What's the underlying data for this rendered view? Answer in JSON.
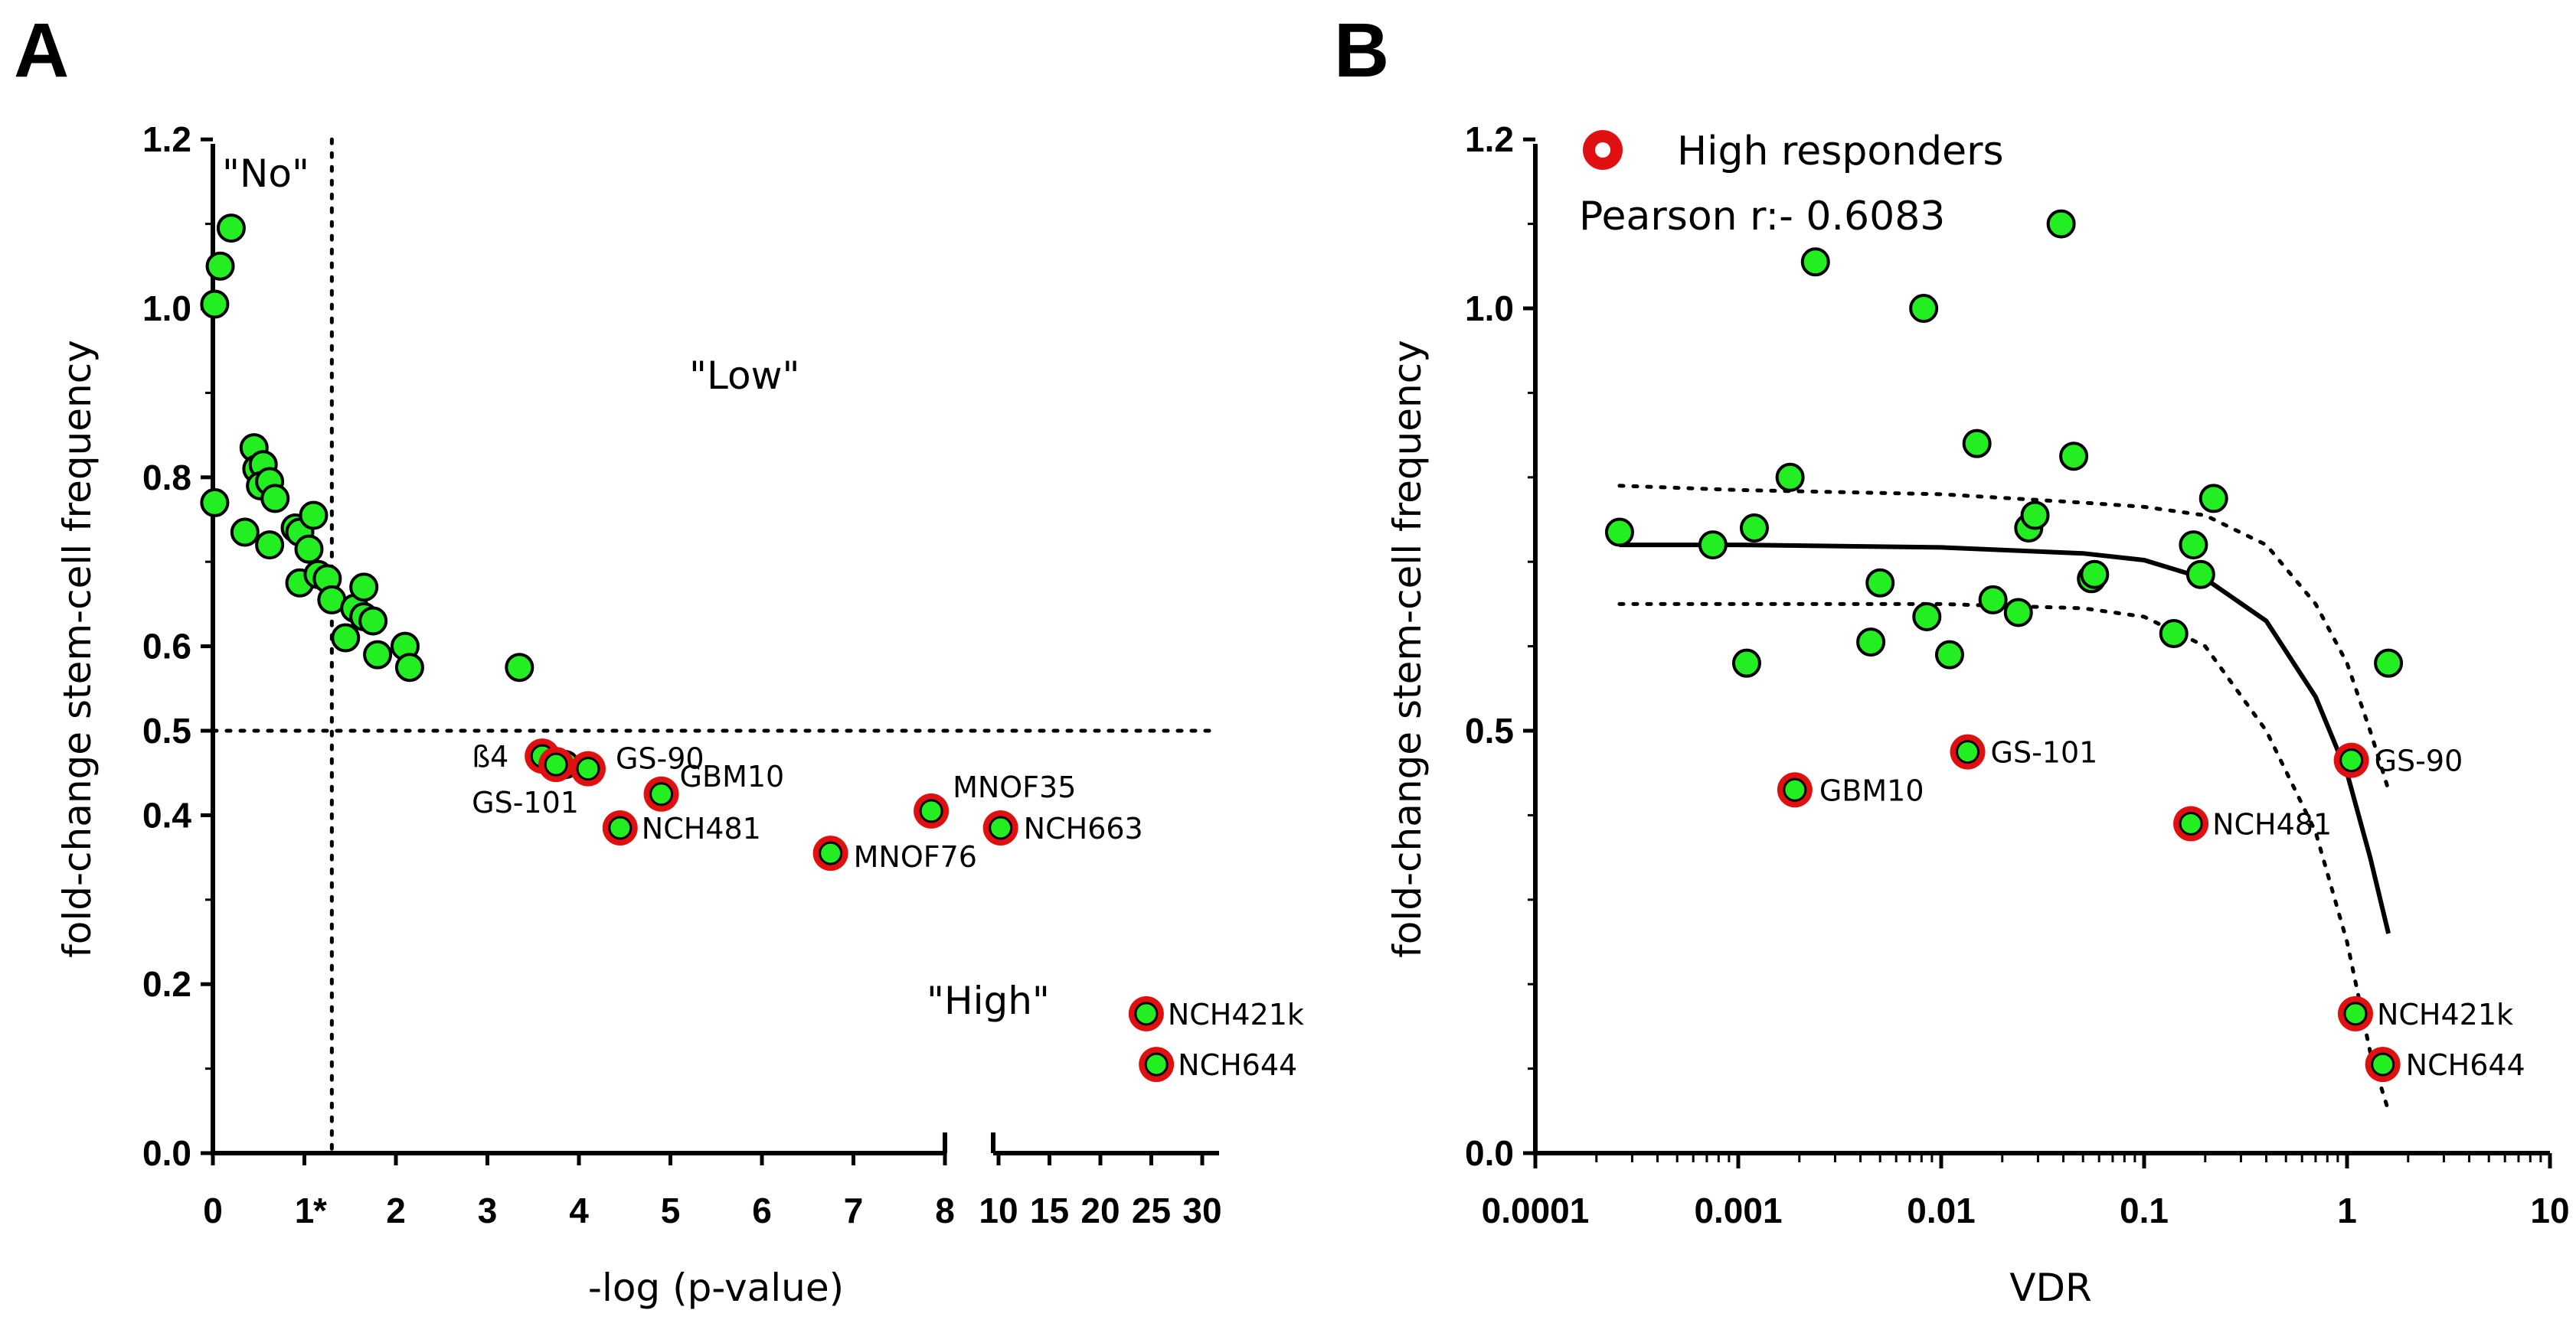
{
  "panel_a_letter": "A",
  "panel_b_letter": "B",
  "chart_data": [
    {
      "panel": "A",
      "type": "scatter",
      "xlabel": "-log (p-value)",
      "ylabel": "fold-change stem-cell frequency",
      "x_axis_break": {
        "left_range": [
          0,
          8
        ],
        "right_range": [
          10,
          30
        ]
      },
      "x_ticks_left": [
        "0",
        "1",
        "2",
        "3",
        "4",
        "5",
        "6",
        "7",
        "8"
      ],
      "x_ticks_right": [
        "10",
        "15",
        "20",
        "25",
        "30"
      ],
      "y_ticks": [
        "0.0",
        "0.2",
        "0.4",
        "0.5",
        "0.6",
        "0.8",
        "1.0",
        "1.2"
      ],
      "ylim": [
        0,
        1.2
      ],
      "threshold_x": 1.3,
      "threshold_x_marker": "*",
      "threshold_y": 0.5,
      "region_labels": {
        "no": "\"No\"",
        "low": "\"Low\"",
        "high": "\"High\""
      },
      "points": [
        {
          "x": 0.02,
          "y": 1.005
        },
        {
          "x": 0.08,
          "y": 1.05
        },
        {
          "x": 0.2,
          "y": 1.095
        },
        {
          "x": 0.02,
          "y": 0.77
        },
        {
          "x": 0.35,
          "y": 0.735
        },
        {
          "x": 0.45,
          "y": 0.835
        },
        {
          "x": 0.48,
          "y": 0.81
        },
        {
          "x": 0.55,
          "y": 0.815
        },
        {
          "x": 0.52,
          "y": 0.79
        },
        {
          "x": 0.62,
          "y": 0.795
        },
        {
          "x": 0.68,
          "y": 0.775
        },
        {
          "x": 0.62,
          "y": 0.72
        },
        {
          "x": 0.9,
          "y": 0.74
        },
        {
          "x": 0.95,
          "y": 0.735
        },
        {
          "x": 1.1,
          "y": 0.755
        },
        {
          "x": 1.05,
          "y": 0.715
        },
        {
          "x": 0.95,
          "y": 0.675
        },
        {
          "x": 1.15,
          "y": 0.685
        },
        {
          "x": 1.25,
          "y": 0.68
        },
        {
          "x": 1.3,
          "y": 0.655
        },
        {
          "x": 1.45,
          "y": 0.61
        },
        {
          "x": 1.55,
          "y": 0.645
        },
        {
          "x": 1.65,
          "y": 0.67
        },
        {
          "x": 1.65,
          "y": 0.635
        },
        {
          "x": 1.75,
          "y": 0.63
        },
        {
          "x": 1.8,
          "y": 0.59
        },
        {
          "x": 2.1,
          "y": 0.6
        },
        {
          "x": 2.15,
          "y": 0.575
        },
        {
          "x": 3.35,
          "y": 0.575
        },
        {
          "x": 3.7,
          "y": 0.465
        },
        {
          "x": 3.85,
          "y": 0.46
        }
      ],
      "high_responders": [
        {
          "x": 3.6,
          "y": 0.47,
          "label": "ß4"
        },
        {
          "x": 4.1,
          "y": 0.455,
          "label": "GS-90"
        },
        {
          "x": 3.75,
          "y": 0.46,
          "label": "GS-101"
        },
        {
          "x": 4.9,
          "y": 0.425,
          "label": "GBM10"
        },
        {
          "x": 4.45,
          "y": 0.385,
          "label": "NCH481"
        },
        {
          "x": 6.75,
          "y": 0.355,
          "label": "MNOF76"
        },
        {
          "x": 7.85,
          "y": 0.405,
          "label": "MNOF35"
        },
        {
          "x": 10.2,
          "y": 0.385,
          "label": "NCH663"
        },
        {
          "x": 24.5,
          "y": 0.165,
          "label": "NCH421k"
        },
        {
          "x": 25.5,
          "y": 0.105,
          "label": "NCH644"
        }
      ]
    },
    {
      "panel": "B",
      "type": "scatter",
      "xlabel": "VDR",
      "ylabel": "fold-change stem-cell frequency",
      "xscale": "log",
      "xlim": [
        0.0001,
        10
      ],
      "x_ticks": [
        "0.0001",
        "0.001",
        "0.01",
        "0.1",
        "1",
        "10"
      ],
      "y_ticks": [
        "0.0",
        "0.5",
        "1.0",
        "1.2"
      ],
      "ylim": [
        0,
        1.2
      ],
      "legend": {
        "label": "High responders",
        "placement": "top-left"
      },
      "annotation": "Pearson r:- 0.6083",
      "fit": {
        "line": [
          [
            0.00026,
            0.72
          ],
          [
            0.001,
            0.72
          ],
          [
            0.01,
            0.717
          ],
          [
            0.05,
            0.71
          ],
          [
            0.1,
            0.702
          ],
          [
            0.2,
            0.68
          ],
          [
            0.4,
            0.63
          ],
          [
            0.7,
            0.54
          ],
          [
            1.0,
            0.45
          ],
          [
            1.3,
            0.35
          ],
          [
            1.6,
            0.26
          ]
        ],
        "upper": [
          [
            0.00026,
            0.79
          ],
          [
            0.001,
            0.785
          ],
          [
            0.01,
            0.78
          ],
          [
            0.05,
            0.77
          ],
          [
            0.1,
            0.765
          ],
          [
            0.2,
            0.755
          ],
          [
            0.4,
            0.72
          ],
          [
            0.7,
            0.65
          ],
          [
            1.0,
            0.58
          ],
          [
            1.3,
            0.5
          ],
          [
            1.6,
            0.43
          ]
        ],
        "lower": [
          [
            0.00026,
            0.65
          ],
          [
            0.001,
            0.65
          ],
          [
            0.01,
            0.65
          ],
          [
            0.05,
            0.645
          ],
          [
            0.1,
            0.635
          ],
          [
            0.2,
            0.6
          ],
          [
            0.4,
            0.5
          ],
          [
            0.7,
            0.38
          ],
          [
            1.0,
            0.25
          ],
          [
            1.3,
            0.12
          ],
          [
            1.6,
            0.05
          ]
        ]
      },
      "points": [
        {
          "x": 0.00026,
          "y": 0.735
        },
        {
          "x": 0.00075,
          "y": 0.72
        },
        {
          "x": 0.0011,
          "y": 0.58
        },
        {
          "x": 0.0012,
          "y": 0.74
        },
        {
          "x": 0.0018,
          "y": 0.8
        },
        {
          "x": 0.0024,
          "y": 1.055
        },
        {
          "x": 0.0045,
          "y": 0.605
        },
        {
          "x": 0.005,
          "y": 0.675
        },
        {
          "x": 0.0082,
          "y": 1.0
        },
        {
          "x": 0.0085,
          "y": 0.635
        },
        {
          "x": 0.011,
          "y": 0.59
        },
        {
          "x": 0.015,
          "y": 0.84
        },
        {
          "x": 0.018,
          "y": 0.655
        },
        {
          "x": 0.024,
          "y": 0.64
        },
        {
          "x": 0.027,
          "y": 0.74
        },
        {
          "x": 0.029,
          "y": 0.755
        },
        {
          "x": 0.039,
          "y": 1.1
        },
        {
          "x": 0.045,
          "y": 0.825
        },
        {
          "x": 0.055,
          "y": 0.68
        },
        {
          "x": 0.057,
          "y": 0.685
        },
        {
          "x": 0.14,
          "y": 0.615
        },
        {
          "x": 0.175,
          "y": 0.72
        },
        {
          "x": 0.19,
          "y": 0.685
        },
        {
          "x": 0.22,
          "y": 0.775
        },
        {
          "x": 1.6,
          "y": 0.58
        }
      ],
      "high_responders": [
        {
          "x": 0.0019,
          "y": 0.43,
          "label": "GBM10"
        },
        {
          "x": 0.0135,
          "y": 0.475,
          "label": "GS-101"
        },
        {
          "x": 0.17,
          "y": 0.39,
          "label": "NCH481"
        },
        {
          "x": 1.05,
          "y": 0.465,
          "label": "GS-90"
        },
        {
          "x": 1.1,
          "y": 0.165,
          "label": "NCH421k"
        },
        {
          "x": 1.5,
          "y": 0.105,
          "label": "NCH644"
        }
      ]
    }
  ]
}
